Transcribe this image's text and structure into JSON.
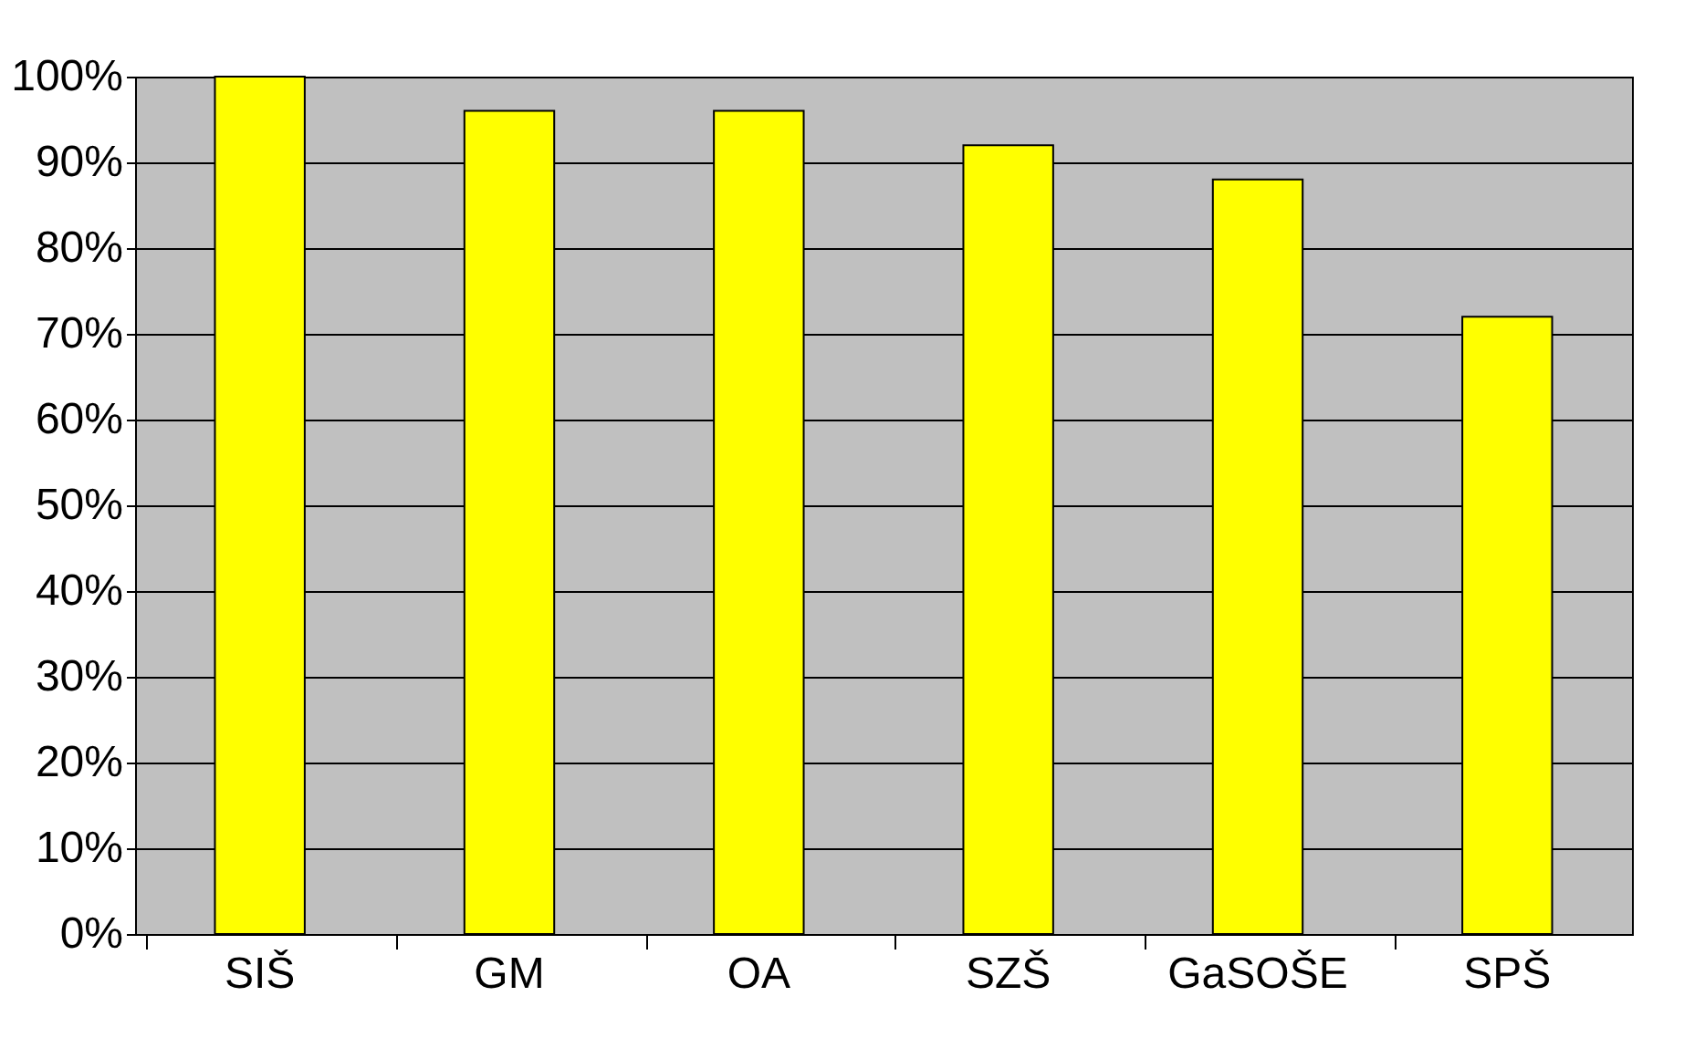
{
  "chart_data": {
    "type": "bar",
    "categories": [
      "SIŠ",
      "GM",
      "OA",
      "SZŠ",
      "GaSOŠE",
      "SPŠ"
    ],
    "values": [
      100,
      96,
      96,
      92,
      88,
      72
    ],
    "color": "#ffff00",
    "ylim": [
      0,
      100
    ],
    "yticks": [
      {
        "value": 0,
        "label": "0%"
      },
      {
        "value": 10,
        "label": "10%"
      },
      {
        "value": 20,
        "label": "20%"
      },
      {
        "value": 30,
        "label": "30%"
      },
      {
        "value": 40,
        "label": "40%"
      },
      {
        "value": 50,
        "label": "50%"
      },
      {
        "value": 60,
        "label": "60%"
      },
      {
        "value": 70,
        "label": "70%"
      },
      {
        "value": 80,
        "label": "80%"
      },
      {
        "value": 90,
        "label": "90%"
      },
      {
        "value": 100,
        "label": "100%"
      }
    ],
    "grid": "y"
  }
}
